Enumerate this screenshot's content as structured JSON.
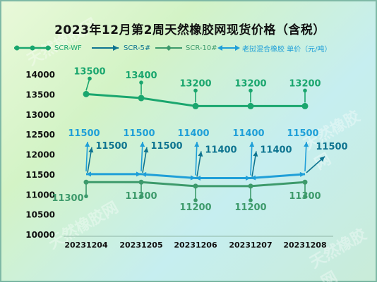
{
  "title": "2023年12月第2周天然橡胶网现货价格（含税）",
  "watermark": "天然橡胶网",
  "legend": {
    "items": [
      {
        "label": "SCR-WF",
        "color": "#1aa66e",
        "marker": "dot-line"
      },
      {
        "label": "SCR-5#",
        "color": "#0e7490",
        "marker": "arrow-line"
      },
      {
        "label": "SCR-10#",
        "color": "#3d9a6b",
        "marker": "diamond-line"
      },
      {
        "label": "老挝混合橡胶 单价（元/吨）",
        "color": "#1f9fd8",
        "marker": "double-arrow"
      }
    ]
  },
  "chart_data": {
    "type": "line",
    "title": "2023年12月第2周天然橡胶网现货价格（含税）",
    "categories": [
      "20231204",
      "20231205",
      "20231206",
      "20231207",
      "20231208"
    ],
    "ylim": [
      10000,
      14000
    ],
    "yticks": [
      "14000",
      "13500",
      "13000",
      "12500",
      "12000",
      "11500",
      "11000",
      "10500",
      "10000"
    ],
    "ytick_values": [
      14000,
      13500,
      13000,
      12500,
      12000,
      11500,
      11000,
      10500,
      10000
    ],
    "grid": false,
    "legend_position": "top",
    "series": [
      {
        "name": "SCR-WF",
        "values": [
          13500,
          13400,
          13200,
          13200,
          13200
        ],
        "color": "#1aa66e"
      },
      {
        "name": "SCR-5#",
        "values": [
          11500,
          11500,
          11400,
          11400,
          11500
        ],
        "color": "#0e7490"
      },
      {
        "name": "SCR-10#",
        "values": [
          11300,
          11300,
          11200,
          11200,
          11300
        ],
        "color": "#3d9a6b"
      },
      {
        "name": "老挝混合橡胶 单价（元/吨）",
        "values": [
          11500,
          11500,
          11400,
          11400,
          11500
        ],
        "color": "#1f9fd8"
      }
    ]
  }
}
